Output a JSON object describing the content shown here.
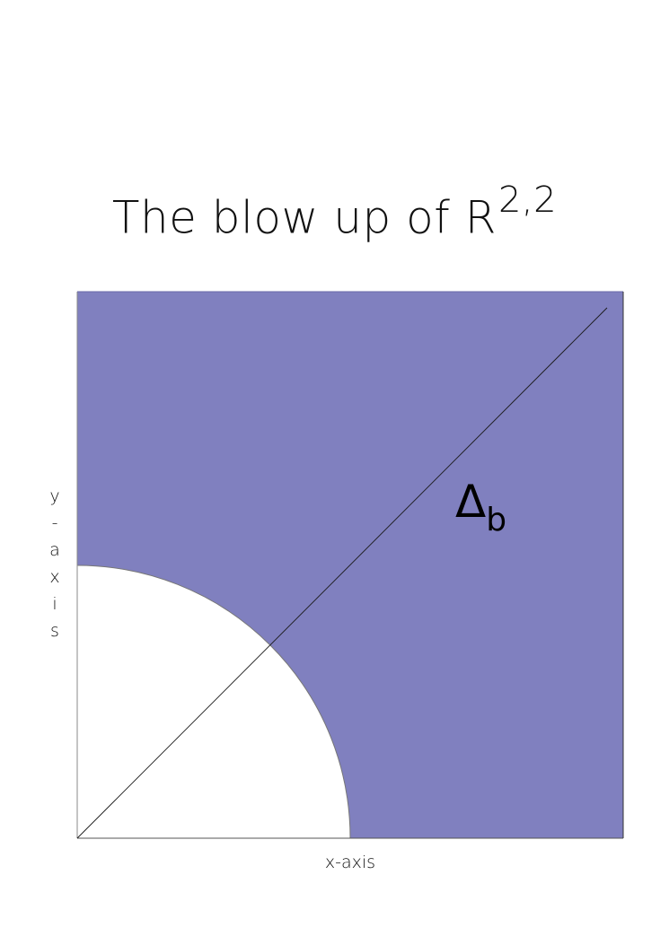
{
  "title": {
    "text": "The blow up of R",
    "superscript": "2,2"
  },
  "axes": {
    "xlabel": "x-axis",
    "ylabel": "y-axis"
  },
  "region": {
    "label": "Δ",
    "subscript": "b",
    "fill_color": "#8080bf",
    "inner_fill_color": "#ffffff"
  }
}
